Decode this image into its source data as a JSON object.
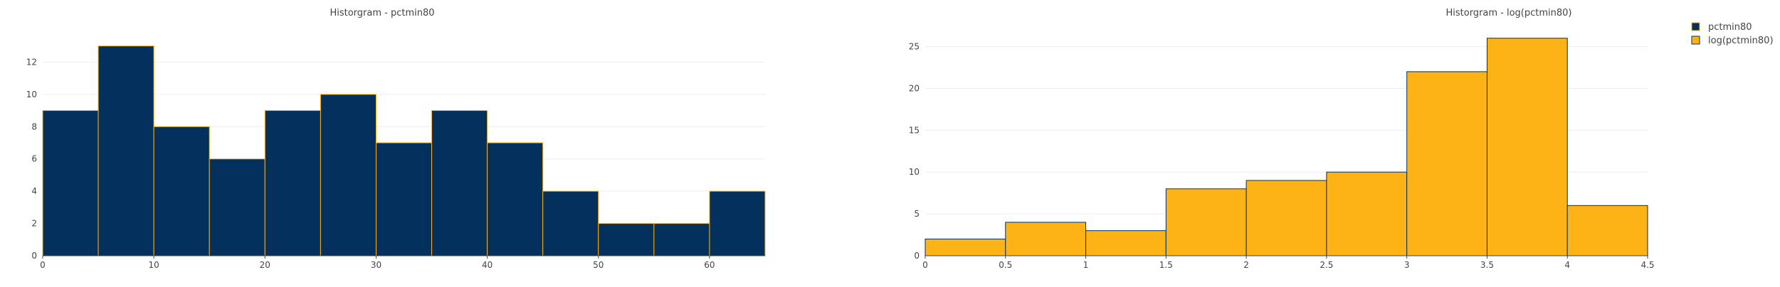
{
  "chart_data": [
    {
      "type": "bar",
      "title": "Historgram - pctmin80",
      "xlabel": "",
      "ylabel": "",
      "series": [
        {
          "name": "pctmin80",
          "color": "#03305d",
          "edge_color": "#fdb216",
          "bins": [
            {
              "x0": 0,
              "x1": 5,
              "count": 9
            },
            {
              "x0": 5,
              "x1": 10,
              "count": 13
            },
            {
              "x0": 10,
              "x1": 15,
              "count": 8
            },
            {
              "x0": 15,
              "x1": 20,
              "count": 6
            },
            {
              "x0": 20,
              "x1": 25,
              "count": 9
            },
            {
              "x0": 25,
              "x1": 30,
              "count": 10
            },
            {
              "x0": 30,
              "x1": 35,
              "count": 7
            },
            {
              "x0": 35,
              "x1": 40,
              "count": 9
            },
            {
              "x0": 40,
              "x1": 45,
              "count": 7
            },
            {
              "x0": 45,
              "x1": 50,
              "count": 4
            },
            {
              "x0": 50,
              "x1": 55,
              "count": 2
            },
            {
              "x0": 55,
              "x1": 60,
              "count": 2
            },
            {
              "x0": 60,
              "x1": 65,
              "count": 4
            }
          ]
        }
      ],
      "xlim": [
        0,
        65
      ],
      "ylim": [
        0,
        14
      ],
      "xticks": [
        0,
        10,
        20,
        30,
        40,
        50,
        60
      ],
      "yticks": [
        0,
        2,
        4,
        6,
        8,
        10,
        12
      ],
      "grid": true
    },
    {
      "type": "bar",
      "title": "Historgram - log(pctmin80)",
      "xlabel": "",
      "ylabel": "",
      "series": [
        {
          "name": "log(pctmin80)",
          "color": "#fdb216",
          "edge_color": "#03305d",
          "bins": [
            {
              "x0": 0,
              "x1": 0.5,
              "count": 2
            },
            {
              "x0": 0.5,
              "x1": 1,
              "count": 4
            },
            {
              "x0": 1,
              "x1": 1.5,
              "count": 3
            },
            {
              "x0": 1.5,
              "x1": 2,
              "count": 8
            },
            {
              "x0": 2,
              "x1": 2.5,
              "count": 9
            },
            {
              "x0": 2.5,
              "x1": 3,
              "count": 10
            },
            {
              "x0": 3,
              "x1": 3.5,
              "count": 22
            },
            {
              "x0": 3.5,
              "x1": 4,
              "count": 26
            },
            {
              "x0": 4,
              "x1": 4.5,
              "count": 6
            }
          ]
        }
      ],
      "xlim": [
        0,
        4.5
      ],
      "ylim": [
        0,
        27
      ],
      "xticks": [
        0,
        0.5,
        1,
        1.5,
        2,
        2.5,
        3,
        3.5,
        4,
        4.5
      ],
      "yticks": [
        0,
        5,
        10,
        15,
        20,
        25
      ],
      "grid": true
    }
  ],
  "legend": {
    "position": "top-right",
    "items": [
      {
        "label": "pctmin80",
        "color": "#03305d",
        "edge_color": "#fdb216"
      },
      {
        "label": "log(pctmin80)",
        "color": "#fdb216",
        "edge_color": "#03305d"
      }
    ]
  }
}
